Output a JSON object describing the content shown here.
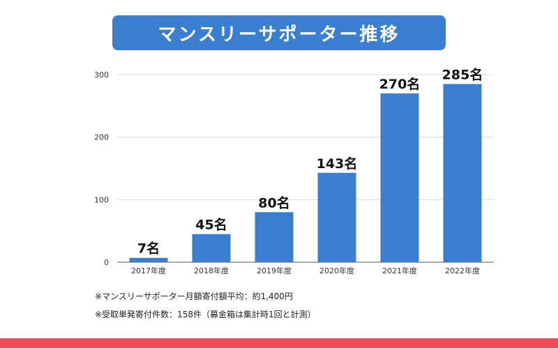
{
  "chart_data": {
    "type": "bar",
    "title": "マンスリーサポーター推移",
    "categories": [
      "2017年度",
      "2018年度",
      "2019年度",
      "2020年度",
      "2021年度",
      "2022年度"
    ],
    "values": [
      7,
      45,
      80,
      143,
      270,
      285
    ],
    "data_labels": [
      "7名",
      "45名",
      "80名",
      "143名",
      "270名",
      "285名"
    ],
    "ylim": [
      0,
      300
    ],
    "yticks": [
      0,
      100,
      200,
      300
    ],
    "xlabel": "",
    "ylabel": "",
    "grid": true,
    "legend": "none",
    "bar_color": "#3a7fcf"
  },
  "notes": [
    "※マンスリーサポーター月額寄付額平均：約1,400円",
    "※受取単発寄付件数：158件（募金箱は集計時1回と計測）"
  ],
  "colors": {
    "title_bg": "#3a7fcf",
    "bottom_band": "#ee4c55"
  }
}
